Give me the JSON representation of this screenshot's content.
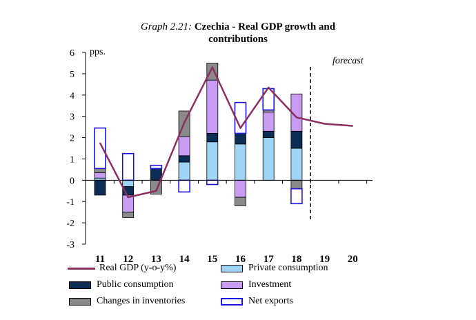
{
  "title": {
    "prefix": "Graph 2.21:",
    "text_line1": "Czechia - Real GDP growth and",
    "text_line2": "contributions"
  },
  "chart_data": {
    "type": "bar",
    "stacked": true,
    "categories": [
      "11",
      "12",
      "13",
      "14",
      "15",
      "16",
      "17",
      "18",
      "19",
      "20"
    ],
    "ylabel": "pps.",
    "ylim": [
      -3,
      6
    ],
    "yticks": [
      -3,
      -2,
      -1,
      0,
      1,
      2,
      3,
      4,
      5,
      6
    ],
    "forecast_label": "forecast",
    "forecast_after_category": "18",
    "series": [
      {
        "key": "private",
        "name": "Private consumption",
        "color": "#9fd4f4",
        "values": [
          0.1,
          -0.3,
          0.0,
          0.85,
          1.8,
          1.7,
          2.0,
          1.5,
          null,
          null
        ]
      },
      {
        "key": "public",
        "name": "Public consumption",
        "color": "#0d2d55",
        "values": [
          -0.7,
          -0.4,
          0.55,
          0.3,
          0.4,
          0.5,
          0.3,
          0.8,
          null,
          null
        ]
      },
      {
        "key": "investment",
        "name": "Investment",
        "color": "#c79cf2",
        "values": [
          0.25,
          -0.8,
          0.0,
          0.9,
          2.5,
          -0.8,
          0.9,
          1.75,
          null,
          null
        ]
      },
      {
        "key": "inventories",
        "name": "Changes in inventories",
        "color": "#8a8a8a",
        "values": [
          0.2,
          -0.25,
          -0.65,
          1.2,
          0.8,
          -0.4,
          0.1,
          -0.4,
          null,
          null
        ]
      },
      {
        "key": "net_exports",
        "name": "Net exports",
        "color": "#ffffff",
        "values": [
          1.9,
          1.25,
          0.15,
          -0.55,
          -0.2,
          1.45,
          1.0,
          -0.7,
          null,
          null
        ]
      }
    ],
    "line": {
      "name": "Real GDP (y-o-y%)",
      "color": "#8c2f60",
      "values": [
        1.75,
        -0.8,
        -0.5,
        2.7,
        5.3,
        2.45,
        4.35,
        2.95,
        2.65,
        2.55
      ]
    }
  },
  "legend": {
    "real_gdp": "Real GDP (y-o-y%)",
    "private": "Private consumption",
    "public": "Public consumption",
    "investment": "Investment",
    "inventories": "Changes in inventories",
    "net_exports": "Net exports"
  },
  "colors": {
    "axis": "#000000",
    "net_exports_border": "#1c14e6",
    "gdp_line": "#8c2f60"
  }
}
